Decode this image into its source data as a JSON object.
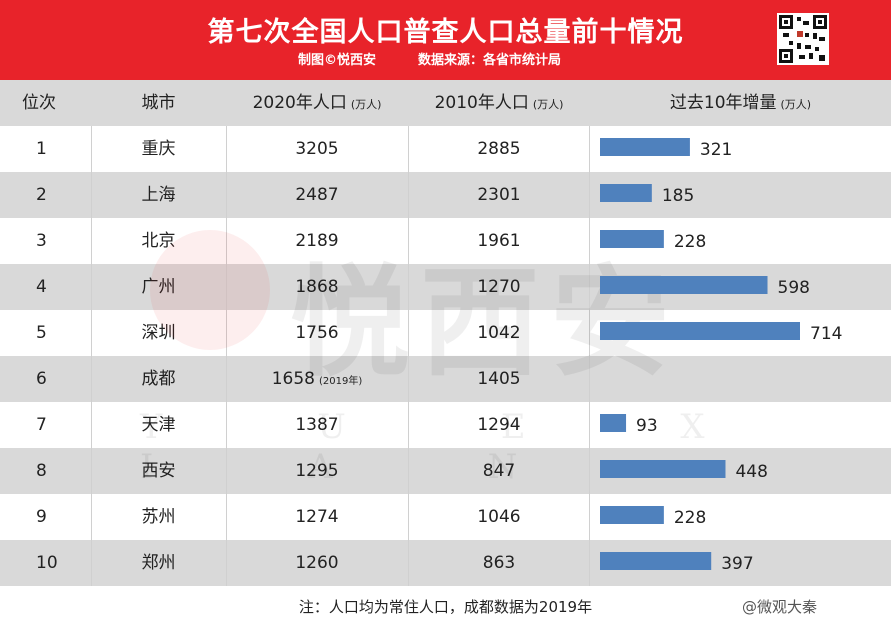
{
  "header": {
    "title": "第七次全国人口普查人口总量前十情况",
    "credit": "制图©悦西安",
    "source": "数据来源：各省市统计局"
  },
  "watermark": {
    "text": "悦西安",
    "letters": "Y U E X I A N"
  },
  "table": {
    "columns": {
      "rank": "位次",
      "city": "城市",
      "pop2020": "2020年人口",
      "pop2010": "2010年人口",
      "growth": "过去10年增量",
      "unit": "(万人)"
    },
    "rows": [
      {
        "rank": "1",
        "city": "重庆",
        "pop2020": "3205",
        "note": "",
        "pop2010": "2885",
        "growth": "321"
      },
      {
        "rank": "2",
        "city": "上海",
        "pop2020": "2487",
        "note": "",
        "pop2010": "2301",
        "growth": "185"
      },
      {
        "rank": "3",
        "city": "北京",
        "pop2020": "2189",
        "note": "",
        "pop2010": "1961",
        "growth": "228"
      },
      {
        "rank": "4",
        "city": "广州",
        "pop2020": "1868",
        "note": "",
        "pop2010": "1270",
        "growth": "598"
      },
      {
        "rank": "5",
        "city": "深圳",
        "pop2020": "1756",
        "note": "",
        "pop2010": "1042",
        "growth": "714"
      },
      {
        "rank": "6",
        "city": "成都",
        "pop2020": "1658",
        "note": "(2019年)",
        "pop2010": "1405",
        "growth": ""
      },
      {
        "rank": "7",
        "city": "天津",
        "pop2020": "1387",
        "note": "",
        "pop2010": "1294",
        "growth": "93"
      },
      {
        "rank": "8",
        "city": "西安",
        "pop2020": "1295",
        "note": "",
        "pop2010": "847",
        "growth": "448"
      },
      {
        "rank": "9",
        "city": "苏州",
        "pop2020": "1274",
        "note": "",
        "pop2010": "1046",
        "growth": "228"
      },
      {
        "rank": "10",
        "city": "郑州",
        "pop2020": "1260",
        "note": "",
        "pop2010": "863",
        "growth": "397"
      }
    ]
  },
  "chart_data": {
    "type": "bar",
    "title": "过去10年增量",
    "categories": [
      "重庆",
      "上海",
      "北京",
      "广州",
      "深圳",
      "成都",
      "天津",
      "西安",
      "苏州",
      "郑州"
    ],
    "values": [
      321,
      185,
      228,
      598,
      714,
      null,
      93,
      448,
      228,
      397
    ],
    "ylabel": "(万人)",
    "bar_color": "#4f81bd"
  },
  "footer": {
    "note": "注：人口均为常住人口，成都数据为2019年",
    "weibo": "@微观大秦"
  },
  "colors": {
    "banner": "#e8232a",
    "stripe": "#d9d9d9",
    "bar": "#4f81bd"
  }
}
